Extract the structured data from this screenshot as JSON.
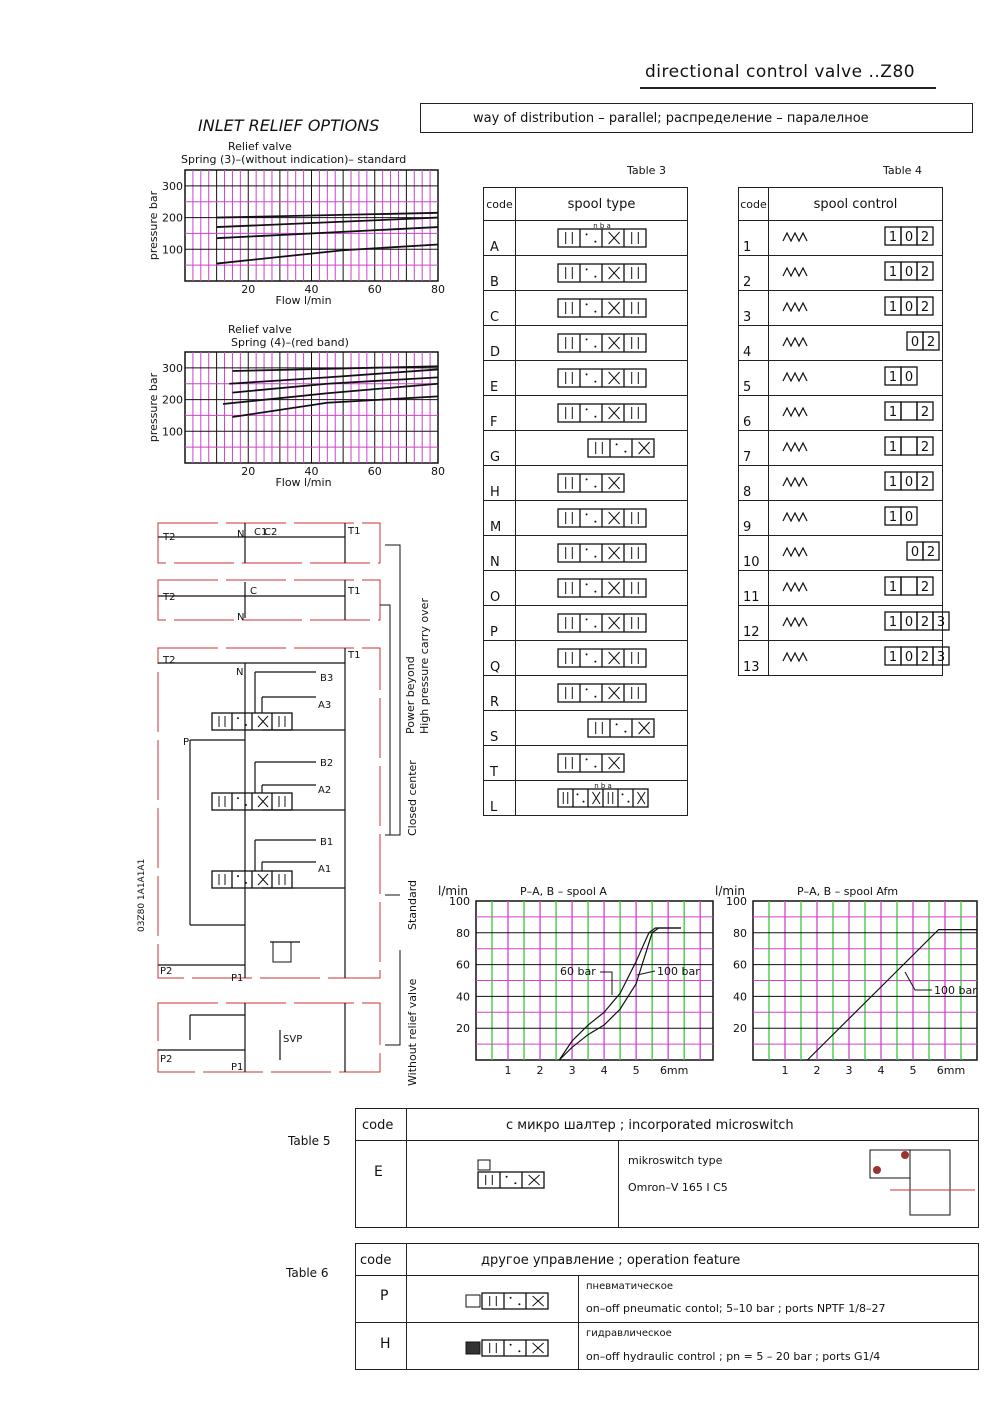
{
  "header": {
    "title": "directional control valve ..Z80",
    "distribution": "way of distribution  –  parallel;  распределение  –  пaралелное",
    "inlet_relief": "INLET RELIEF OPTIONS"
  },
  "colors": {
    "grid_minor": "#cc44cc",
    "grid_flow": "#33cc33",
    "frame_red": "#cc3333",
    "line": "#111111"
  },
  "chart_data": [
    {
      "type": "line",
      "title": "Relief valve",
      "subtitle": "Spring (3)–(without indication)– standard",
      "xlabel": "Flow l/min",
      "ylabel": "pressure bar",
      "xlim": [
        0,
        80
      ],
      "ylim": [
        0,
        350
      ],
      "xticks": [
        "20",
        "40",
        "60",
        "80"
      ],
      "yticks": [
        "100",
        "200",
        "300"
      ],
      "grid": true,
      "series": [
        {
          "x": [
            10,
            80
          ],
          "y": [
            200,
            215
          ]
        },
        {
          "x": [
            10,
            80
          ],
          "y": [
            170,
            200
          ]
        },
        {
          "x": [
            10,
            80
          ],
          "y": [
            135,
            170
          ]
        },
        {
          "x": [
            10,
            50,
            80
          ],
          "y": [
            55,
            97,
            115
          ]
        }
      ]
    },
    {
      "type": "line",
      "title": "Relief valve",
      "subtitle": "Spring (4)–(red band)",
      "xlabel": "Flow l/min",
      "ylabel": "pressure bar",
      "xlim": [
        0,
        80
      ],
      "ylim": [
        0,
        350
      ],
      "xticks": [
        "20",
        "40",
        "60",
        "80"
      ],
      "yticks": [
        "100",
        "200",
        "300"
      ],
      "grid": true,
      "series": [
        {
          "x": [
            15,
            80
          ],
          "y": [
            290,
            305
          ]
        },
        {
          "x": [
            14,
            45,
            80
          ],
          "y": [
            250,
            270,
            295
          ]
        },
        {
          "x": [
            15,
            45,
            80
          ],
          "y": [
            222,
            250,
            270
          ]
        },
        {
          "x": [
            12,
            45,
            80
          ],
          "y": [
            186,
            220,
            250
          ]
        },
        {
          "x": [
            15,
            45,
            80
          ],
          "y": [
            145,
            190,
            210
          ]
        }
      ]
    },
    {
      "type": "line",
      "title": "P–A, B  –  spool  A",
      "xlabel": "6mm",
      "ylabel": "l/min",
      "xlim": [
        0,
        7.4
      ],
      "ylim": [
        0,
        100
      ],
      "xticks": [
        "1",
        "2",
        "3",
        "4",
        "5",
        "6mm"
      ],
      "yticks": [
        "20",
        "40",
        "60",
        "80",
        "100"
      ],
      "grid": true,
      "series": [
        {
          "name": "60 bar",
          "x": [
            2.6,
            3,
            3.5,
            4,
            4.5,
            5,
            5.4,
            5.6,
            6.4
          ],
          "y": [
            0,
            12,
            22,
            30,
            42,
            62,
            80,
            83,
            83
          ]
        },
        {
          "name": "100 bar",
          "x": [
            2.6,
            3,
            3.5,
            4,
            4.5,
            5,
            5.5,
            5.7,
            6.4
          ],
          "y": [
            0,
            8,
            16,
            22,
            32,
            48,
            80,
            83,
            83
          ]
        }
      ]
    },
    {
      "type": "line",
      "title": "P–A, B  –  spool  Afm",
      "xlabel": "6mm",
      "ylabel": "l/min",
      "xlim": [
        0,
        7
      ],
      "ylim": [
        0,
        100
      ],
      "xticks": [
        "1",
        "2",
        "3",
        "4",
        "5",
        "6mm"
      ],
      "yticks": [
        "20",
        "40",
        "60",
        "80",
        "100"
      ],
      "grid": true,
      "series": [
        {
          "name": "100 bar",
          "x": [
            1.7,
            5.8,
            7
          ],
          "y": [
            0,
            82,
            82
          ]
        }
      ]
    }
  ],
  "schematic": {
    "ports": [
      "T2",
      "T1",
      "N",
      "C1",
      "C2",
      "C",
      "B3",
      "A3",
      "B2",
      "A2",
      "B1",
      "A1",
      "P",
      "P2",
      "P1",
      "SVP"
    ],
    "model": "03Z80 1A1A1A1",
    "labels": [
      "Power beyond",
      "High pressure carry over",
      "Closed center",
      "Standard",
      "Without relief valve"
    ]
  },
  "table3": {
    "title": "Table 3",
    "code_header": "code",
    "header": "spool type",
    "rows": [
      "A",
      "B",
      "C",
      "D",
      "E",
      "F",
      "G",
      "H",
      "M",
      "N",
      "O",
      "P",
      "Q",
      "R",
      "S",
      "T",
      "L"
    ],
    "spool_labels_a": "n b a",
    "spool_labels_l": "n b a"
  },
  "table4": {
    "title": "Table 4",
    "code_header": "code",
    "header": "spool control",
    "rows": [
      {
        "code": "1",
        "pos": [
          "1",
          "0",
          "2"
        ]
      },
      {
        "code": "2",
        "pos": [
          "1",
          "0",
          "2"
        ]
      },
      {
        "code": "3",
        "pos": [
          "1",
          "0",
          "2"
        ]
      },
      {
        "code": "4",
        "pos": [
          "0",
          "2"
        ]
      },
      {
        "code": "5",
        "pos": [
          "1",
          "0"
        ]
      },
      {
        "code": "6",
        "pos": [
          "1",
          "",
          "2"
        ]
      },
      {
        "code": "7",
        "pos": [
          "1",
          "",
          "2"
        ]
      },
      {
        "code": "8",
        "pos": [
          "1",
          "0",
          "2"
        ]
      },
      {
        "code": "9",
        "pos": [
          "1",
          "0"
        ]
      },
      {
        "code": "10",
        "pos": [
          "0",
          "2"
        ]
      },
      {
        "code": "11",
        "pos": [
          "1",
          "",
          "2"
        ]
      },
      {
        "code": "12",
        "pos": [
          "1",
          "0",
          "2",
          "3"
        ]
      },
      {
        "code": "13",
        "pos": [
          "1",
          "0",
          "2",
          "3"
        ]
      }
    ]
  },
  "table5": {
    "title": "Table 5",
    "code_header": "code",
    "header": "с микро шалтер ; incorporated microswitch",
    "code": "E",
    "type_label": "mikroswitch type",
    "type_value": "Omron–V 165 I C5"
  },
  "table6": {
    "title": "Table 6",
    "code_header": "code",
    "header": "другое управление ; operation feature",
    "rows": [
      {
        "code": "P",
        "ru": "пневматическое",
        "en": "on–off pneumatic contol;  5–10 bar ;  ports NPTF 1/8–27"
      },
      {
        "code": "H",
        "ru": "гидравлическое",
        "en": "on–off hydraulic control ; pn = 5 – 20 bar ; ports G1/4"
      }
    ]
  }
}
